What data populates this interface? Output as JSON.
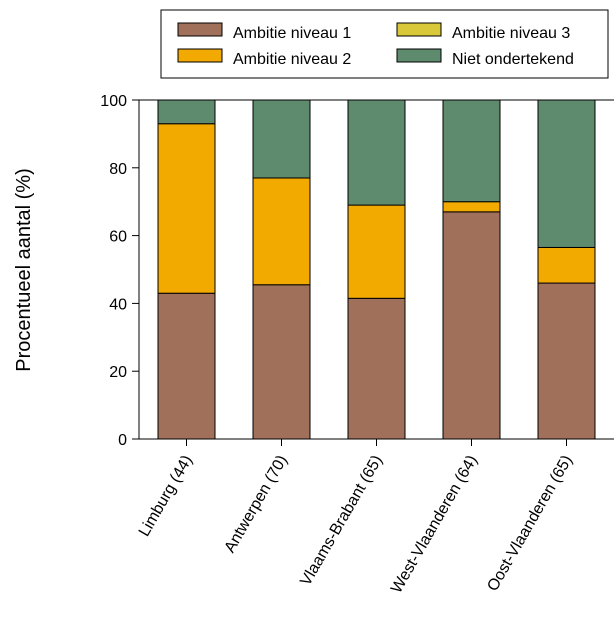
{
  "chart_data": {
    "type": "bar",
    "stacked": true,
    "categories": [
      "Limburg (44)",
      "Antwerpen (70)",
      "Vlaams-Brabant (65)",
      "West-Vlaanderen (64)",
      "Oost-Vlaanderen (65)"
    ],
    "series": [
      {
        "name": "Ambitie niveau 1",
        "color": "#A0705A",
        "values": [
          43,
          45.5,
          41.5,
          67,
          46
        ]
      },
      {
        "name": "Ambitie niveau 2",
        "color": "#F2A900",
        "values": [
          50,
          31.5,
          27.5,
          3,
          10.5
        ]
      },
      {
        "name": "Ambitie niveau 3",
        "color": "#D8C83A",
        "values": [
          0,
          0,
          0,
          0,
          0
        ]
      },
      {
        "name": "Niet ondertekend",
        "color": "#5E8A6E",
        "values": [
          7,
          23,
          31,
          30,
          43.5
        ]
      }
    ],
    "ylabel": "Procentueel aantal  (%)",
    "xlabel": "",
    "ylim": [
      0,
      100
    ],
    "yticks": [
      0,
      20,
      40,
      60,
      80,
      100
    ],
    "grid": false,
    "legend_position": "top-right"
  }
}
